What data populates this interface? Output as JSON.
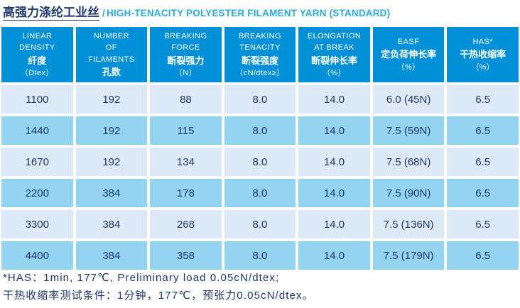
{
  "title": {
    "zh": "高强力涤纶工业丝",
    "sep": "/",
    "en": "HIGH-TENACITY POLYESTER FILAMENT YARN (STANDARD)"
  },
  "table": {
    "headers": [
      {
        "name": "linear-density",
        "lines": [
          "LINEAR",
          "DENSITY",
          "纤度",
          "（Dtex）"
        ]
      },
      {
        "name": "number-of-filaments",
        "lines": [
          "NUMBER",
          "OF",
          "FILAMENTS",
          "孔数"
        ]
      },
      {
        "name": "breaking-force",
        "lines": [
          "BREAKING",
          "FORCE",
          "断裂强力",
          "（N）"
        ]
      },
      {
        "name": "breaking-tenacity",
        "lines": [
          "BREAKING",
          "TENACITY",
          "断裂强度",
          "（cN/dtex≥）"
        ]
      },
      {
        "name": "elongation-at-break",
        "lines": [
          "ELONGATION",
          "AT BREAK",
          "断裂伸长率",
          "（%）"
        ]
      },
      {
        "name": "easf",
        "lines": [
          "EASF",
          "定负荷伸长率",
          "（%）"
        ]
      },
      {
        "name": "has",
        "lines": [
          "HAS*",
          "干热收缩率",
          "（%）"
        ]
      }
    ],
    "rows": [
      [
        "1100",
        "192",
        "88",
        "8.0",
        "14.0",
        "6.0 (45N)",
        "6.5"
      ],
      [
        "1440",
        "192",
        "115",
        "8.0",
        "14.0",
        "7.5 (59N)",
        "6.5"
      ],
      [
        "1670",
        "192",
        "134",
        "8.0",
        "14.0",
        "7.5 (68N)",
        "6.5"
      ],
      [
        "2200",
        "384",
        "178",
        "8.0",
        "14.0",
        "7.5 (90N)",
        "6.5"
      ],
      [
        "3300",
        "384",
        "268",
        "8.0",
        "14.0",
        "7.5 (136N)",
        "6.5"
      ],
      [
        "4400",
        "384",
        "358",
        "8.0",
        "14.0",
        "7.5 (179N)",
        "6.5"
      ]
    ]
  },
  "notes": {
    "line1": "*HAS：1min, 177℃, Preliminary load 0.05cN/dtex;",
    "line2": "干热收缩率测试条件：1分钟，177℃，预张力0.05cN/dtex。"
  },
  "colors": {
    "header_bg": "#0090d8",
    "row_light": "#dde9f7",
    "row_dark": "#93d4f1",
    "cell_text": "#1f3864",
    "title_zh": "#1f3a6d",
    "title_en": "#29abe2"
  }
}
